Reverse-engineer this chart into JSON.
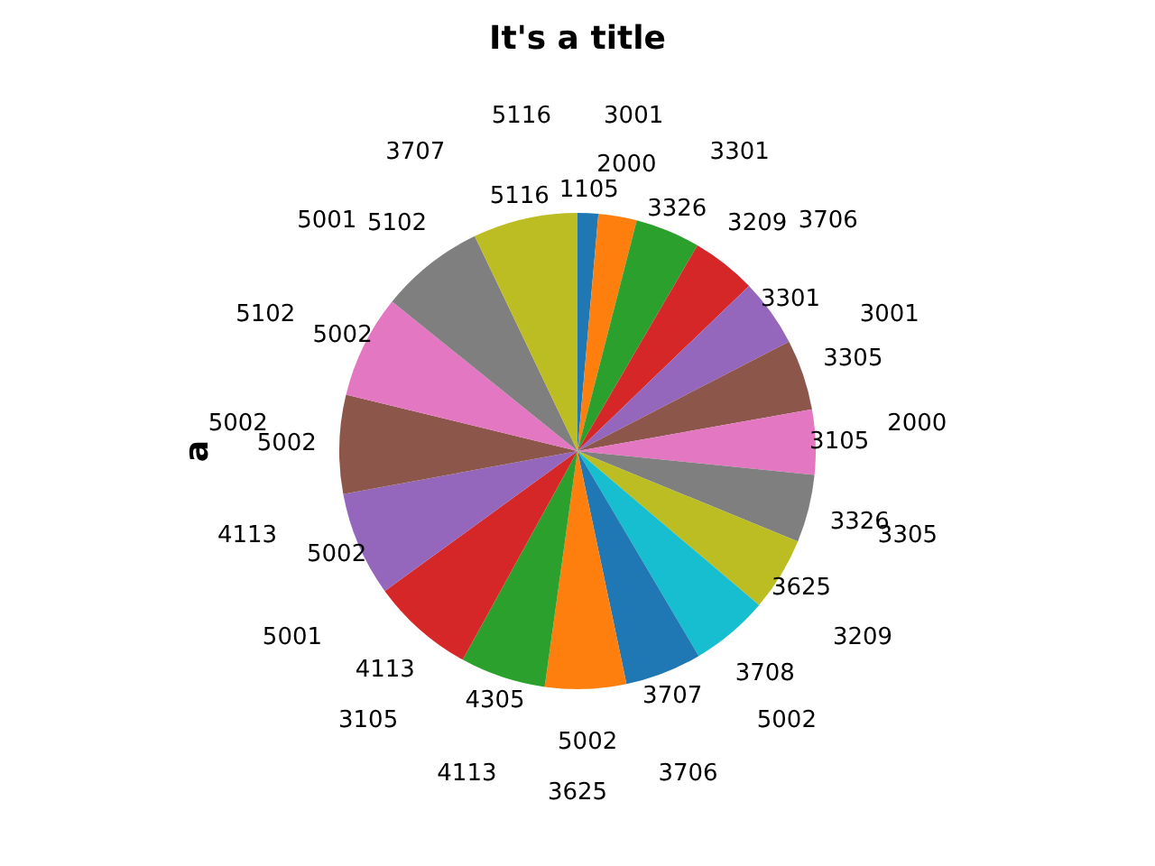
{
  "chart_data": {
    "type": "pie",
    "title": "It's a title",
    "ylabel": "a",
    "categories": [
      "1105",
      "2000",
      "3326",
      "3209",
      "3301",
      "3305",
      "3105",
      "3326",
      "3625",
      "3708",
      "3707",
      "5002",
      "4305",
      "4113",
      "5002",
      "5002",
      "5002",
      "5102",
      "5116"
    ],
    "values": [
      1.4,
      2.6,
      4.4,
      4.4,
      4.6,
      4.8,
      4.4,
      4.6,
      5.0,
      5.3,
      5.2,
      5.5,
      5.8,
      7.0,
      7.1,
      6.7,
      7.0,
      7.1,
      7.1
    ],
    "colors": [
      "#1f77b4",
      "#ff7f0e",
      "#2ca02c",
      "#d62728",
      "#9467bd",
      "#8c564b",
      "#e377c2",
      "#7f7f7f",
      "#bcbd22",
      "#17becf",
      "#1f77b4",
      "#ff7f0e",
      "#2ca02c",
      "#d62728",
      "#9467bd",
      "#8c564b",
      "#e377c2",
      "#7f7f7f",
      "#bcbd22"
    ],
    "annotations": [
      "3001",
      "3301",
      "3706",
      "3001",
      "2000",
      "3305",
      "3209",
      "5002",
      "3706",
      "3625",
      "4113",
      "3105",
      "5001",
      "4113",
      "5002",
      "5102",
      "5001",
      "3707",
      "5116"
    ],
    "legend": false
  }
}
